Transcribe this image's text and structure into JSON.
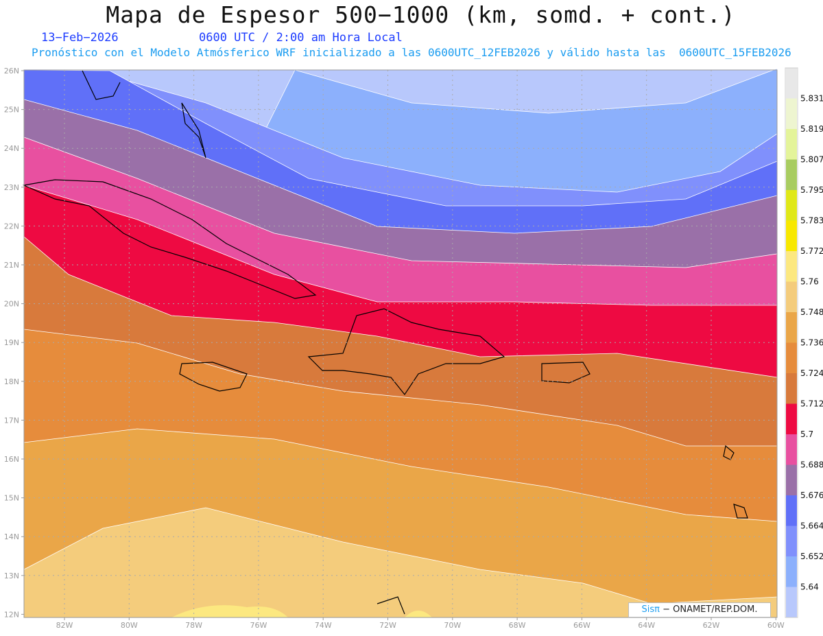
{
  "header": {
    "title": "Mapa de Espesor 500−1000 (km, somd. + cont.)",
    "date": "13−Feb−2026",
    "time": "0600 UTC / 2:00 am Hora Local",
    "subtitle": "Pronóstico con el Modelo Atmósferico WRF inicializado a las 0600UTC_12FEB2026 y válido hasta las  0600UTC_15FEB2026"
  },
  "axes": {
    "lat_labels": [
      "26N",
      "25N",
      "24N",
      "23N",
      "22N",
      "21N",
      "20N",
      "19N",
      "18N",
      "17N",
      "16N",
      "15N",
      "14N",
      "13N",
      "12N"
    ],
    "lon_labels": [
      "82W",
      "80W",
      "78W",
      "76W",
      "74W",
      "72W",
      "70W",
      "68W",
      "66W",
      "64W",
      "62W",
      "60W"
    ]
  },
  "colorbar": {
    "colors": [
      "#e8e8e8",
      "#eef5d0",
      "#e4f49a",
      "#a8cc60",
      "#e0e818",
      "#f8e800",
      "#fce880",
      "#f4cc7c",
      "#eaa648",
      "#e68c3c",
      "#d87a3c",
      "#ee0a42",
      "#e850a0",
      "#9a70a8",
      "#6070f8",
      "#8090fc",
      "#8cb0fc",
      "#b8c8fc"
    ],
    "labels": [
      "5.831",
      "5.819",
      "5.807",
      "5.795",
      "5.783",
      "5.772",
      "5.76",
      "5.748",
      "5.736",
      "5.724",
      "5.712",
      "5.7",
      "5.688",
      "5.676",
      "5.664",
      "5.652",
      "5.64"
    ]
  },
  "logo": {
    "brand": "Sisπ",
    "text": " − ONAMET/REP.DOM."
  }
}
